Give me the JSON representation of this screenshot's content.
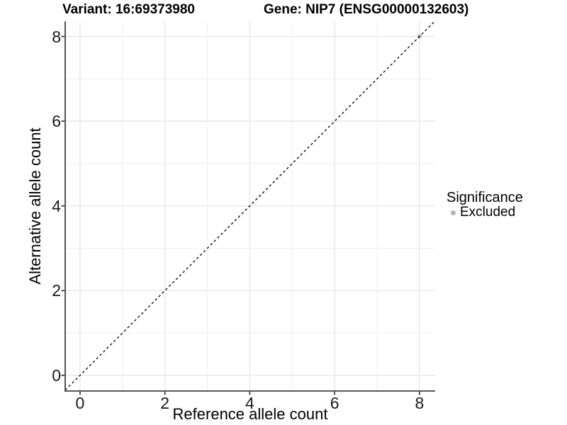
{
  "chart_data": {
    "type": "scatter",
    "title_left": "Variant: 16:69373980",
    "title_right": "Gene: NIP7 (ENSG00000132603)",
    "xlabel": "Reference allele count",
    "ylabel": "Alternative allele count",
    "xlim": [
      -0.35,
      8.37
    ],
    "ylim": [
      -0.37,
      8.36
    ],
    "xticks": [
      0,
      2,
      4,
      6,
      8
    ],
    "yticks": [
      0,
      2,
      4,
      6,
      8
    ],
    "xminor": [
      1,
      3,
      5,
      7
    ],
    "yminor": [
      1,
      3,
      5,
      7
    ],
    "grid": "major+minor",
    "identity_line": {
      "slope": 1,
      "intercept": 0,
      "linetype": "dashed",
      "color": "#000000"
    },
    "series": [
      {
        "name": "Excluded",
        "color": "#b5b5b5",
        "points": [
          [
            8,
            8
          ]
        ],
        "point_radius": 3.2
      }
    ],
    "legend": {
      "title": "Significance",
      "position": "right",
      "items": [
        {
          "label": "Excluded",
          "color": "#b5b5b5"
        }
      ]
    },
    "style": {
      "grid_major_color": "#e3e3e3",
      "grid_minor_color": "#efefef",
      "axis_line_color": "#404040",
      "tick_color": "#404040",
      "background": "#ffffff"
    }
  }
}
